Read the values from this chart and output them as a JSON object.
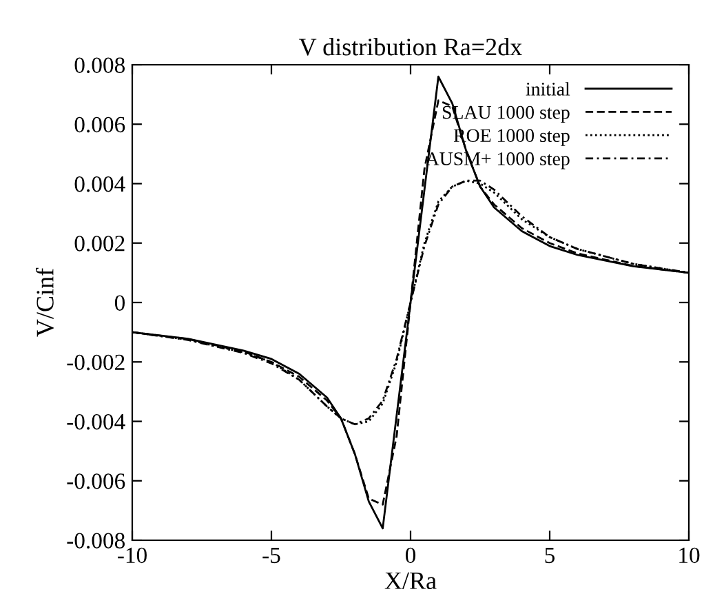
{
  "chart_data": {
    "type": "line",
    "title": "V distribution Ra=2dx",
    "xlabel": "X/Ra",
    "ylabel": "V/Cinf",
    "xlim": [
      -10,
      10
    ],
    "ylim": [
      -0.008,
      0.008
    ],
    "xticks": [
      -10,
      -5,
      0,
      5,
      10
    ],
    "yticks": [
      -0.008,
      -0.006,
      -0.004,
      -0.002,
      0,
      0.002,
      0.004,
      0.006,
      0.008
    ],
    "legend": "top right",
    "grid": false,
    "series": [
      {
        "name": "initial",
        "color": "#000000",
        "line_style": "solid",
        "x": [
          -10,
          -8,
          -6,
          -5,
          -4,
          -3,
          -2.5,
          -2,
          -1.5,
          -1,
          0,
          1,
          1.5,
          2,
          2.5,
          3,
          4,
          5,
          6,
          8,
          10
        ],
        "values": [
          -0.001,
          -0.00122,
          -0.00162,
          -0.0019,
          -0.0024,
          -0.0032,
          -0.0039,
          -0.0051,
          -0.0067,
          -0.0076,
          0,
          0.0076,
          0.0067,
          0.0051,
          0.0039,
          0.0032,
          0.0024,
          0.0019,
          0.0016,
          0.00122,
          0.001
        ]
      },
      {
        "name": "SLAU 1000 step",
        "color": "#000000",
        "line_style": "dashed",
        "x": [
          -10,
          -8,
          -6,
          -5,
          -4,
          -3,
          -2.5,
          -2,
          -1.5,
          -1,
          -0.5,
          0,
          0.5,
          1,
          1.5,
          2,
          2.5,
          3,
          4,
          5,
          6,
          8,
          10
        ],
        "values": [
          -0.001,
          -0.00123,
          -0.00165,
          -0.002,
          -0.0025,
          -0.0033,
          -0.0039,
          -0.0051,
          -0.0066,
          -0.0068,
          -0.0045,
          0,
          0.0045,
          0.0068,
          0.0066,
          0.0051,
          0.0039,
          0.0033,
          0.0025,
          0.002,
          0.00165,
          0.00123,
          0.001
        ]
      },
      {
        "name": "ROE 1000 step",
        "color": "#000000",
        "line_style": "dotted",
        "x": [
          -10,
          -8,
          -6,
          -5,
          -4,
          -3,
          -2.5,
          -2,
          -1.5,
          -1,
          -0.5,
          0,
          0.5,
          1,
          1.5,
          2,
          2.5,
          3,
          4,
          5,
          6,
          8,
          10
        ],
        "values": [
          -0.001,
          -0.00125,
          -0.00168,
          -0.002,
          -0.0026,
          -0.0035,
          -0.0039,
          -0.0041,
          -0.004,
          -0.0034,
          -0.002,
          0,
          0.002,
          0.0034,
          0.0039,
          0.0041,
          0.004,
          0.0037,
          0.0028,
          0.0022,
          0.0018,
          0.0013,
          0.001
        ]
      },
      {
        "name": "AUSM+ 1000 step",
        "color": "#000000",
        "line_style": "dashdot",
        "x": [
          -10,
          -8,
          -6,
          -5,
          -4,
          -3,
          -2.5,
          -2,
          -1.5,
          -1,
          -0.5,
          0,
          0.5,
          1,
          1.5,
          2,
          2.5,
          3,
          4,
          5,
          6,
          8,
          10
        ],
        "values": [
          -0.001,
          -0.00126,
          -0.0017,
          -0.00205,
          -0.0026,
          -0.0035,
          -0.0039,
          -0.0041,
          -0.0039,
          -0.0033,
          -0.0019,
          0,
          0.0019,
          0.0033,
          0.0039,
          0.0041,
          0.0041,
          0.0038,
          0.0029,
          0.0022,
          0.0018,
          0.0013,
          0.001
        ]
      }
    ]
  }
}
